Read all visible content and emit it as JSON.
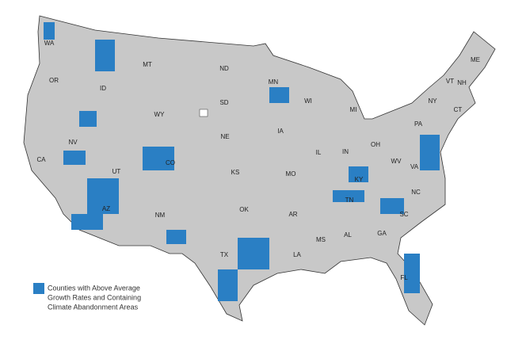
{
  "map": {
    "state_labels": [
      "WA",
      "OR",
      "CA",
      "NV",
      "ID",
      "MT",
      "WY",
      "UT",
      "AZ",
      "CO",
      "NM",
      "ND",
      "SD",
      "NE",
      "KS",
      "OK",
      "TX",
      "MN",
      "IA",
      "MO",
      "AR",
      "LA",
      "WI",
      "IL",
      "MS",
      "MI",
      "IN",
      "KY",
      "TN",
      "AL",
      "GA",
      "FL",
      "OH",
      "WV",
      "VA",
      "NC",
      "SC",
      "PA",
      "NY",
      "VT",
      "NH",
      "ME",
      "CT"
    ],
    "legend": {
      "lines": [
        "Counties with Above Average",
        "Growth Rates and Containing",
        "Climate Abandonment Areas"
      ]
    }
  }
}
